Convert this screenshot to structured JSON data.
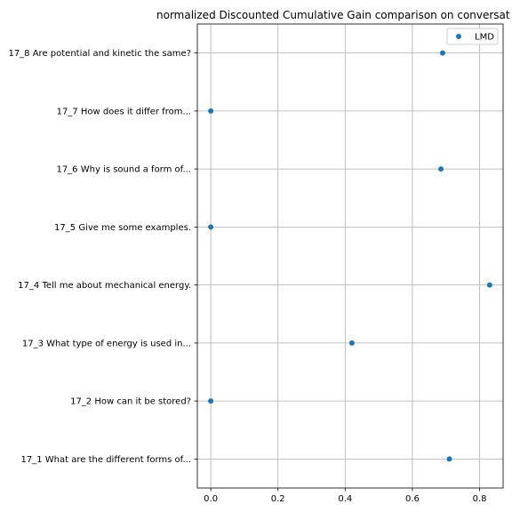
{
  "chart_data": {
    "type": "scatter",
    "title": "normalized Discounted Cumulative Gain comparison on conversat",
    "xlabel": "",
    "ylabel": "",
    "xlim": [
      -0.04,
      0.87
    ],
    "xticks": [
      0.0,
      0.2,
      0.4,
      0.6,
      0.8
    ],
    "xtick_labels": [
      "0.0",
      "0.2",
      "0.4",
      "0.6",
      "0.8"
    ],
    "categories": [
      "17_1 What are the different forms of...",
      "17_2 How can it be stored?",
      "17_3 What type of energy is used in...",
      "17_4 Tell me about mechanical energy.",
      "17_5 Give me some examples.",
      "17_6 Why is sound a form of...",
      "17_7 How does it differ from...",
      "17_8 Are potential and kinetic the same?"
    ],
    "series": [
      {
        "name": "LMD",
        "color": "#1f77b4",
        "values": [
          0.71,
          0.0,
          0.42,
          0.83,
          0.0,
          0.685,
          0.0,
          0.69
        ]
      }
    ],
    "grid": true,
    "legend": "top-right"
  }
}
